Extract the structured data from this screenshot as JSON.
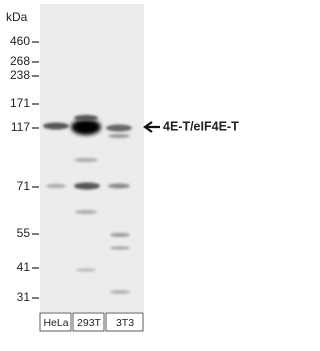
{
  "unit": "kDa",
  "markers": [
    460,
    268,
    238,
    171,
    117,
    71,
    55,
    41,
    31
  ],
  "lanes": [
    "HeLa",
    "293T",
    "3T3"
  ],
  "annotation": "4E-T/eIF4E-T"
}
